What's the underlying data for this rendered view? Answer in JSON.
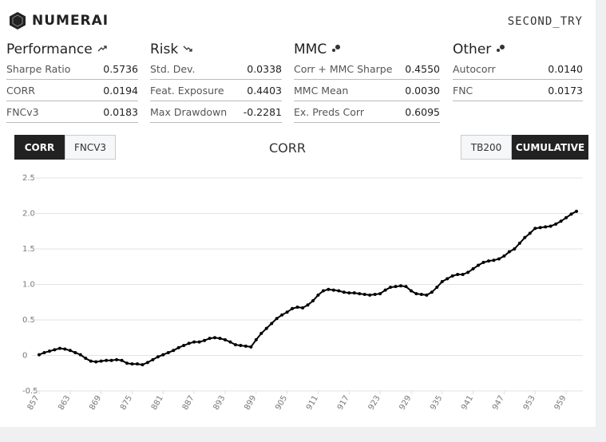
{
  "header": {
    "brand": "NUMERAI",
    "model": "SECOND_TRY"
  },
  "metrics": [
    {
      "title": "Performance",
      "rows": [
        {
          "label": "Sharpe Ratio",
          "value": "0.5736"
        },
        {
          "label": "CORR",
          "value": "0.0194"
        },
        {
          "label": "FNCv3",
          "value": "0.0183"
        }
      ]
    },
    {
      "title": "Risk",
      "rows": [
        {
          "label": "Std. Dev.",
          "value": "0.0338"
        },
        {
          "label": "Feat. Exposure",
          "value": "0.4403"
        },
        {
          "label": "Max Drawdown",
          "value": "-0.2281"
        }
      ]
    },
    {
      "title": "MMC",
      "rows": [
        {
          "label": "Corr + MMC Sharpe",
          "value": "0.4550"
        },
        {
          "label": "MMC Mean",
          "value": "0.0030"
        },
        {
          "label": "Ex. Preds Corr",
          "value": "0.6095"
        }
      ]
    },
    {
      "title": "Other",
      "rows": [
        {
          "label": "Autocorr",
          "value": "0.0140"
        },
        {
          "label": "FNC",
          "value": "0.0173"
        }
      ]
    }
  ],
  "tabs": {
    "left": [
      "CORR",
      "FNCV3"
    ],
    "right": [
      "TB200",
      "CUMULATIVE"
    ]
  },
  "chart_data": {
    "type": "line",
    "title": "CORR",
    "color": "#000000",
    "grid": true,
    "x": [
      857,
      858,
      859,
      860,
      861,
      862,
      863,
      864,
      865,
      866,
      867,
      868,
      869,
      870,
      871,
      872,
      873,
      874,
      875,
      876,
      877,
      878,
      879,
      880,
      881,
      882,
      883,
      884,
      885,
      886,
      887,
      888,
      889,
      890,
      891,
      892,
      893,
      894,
      895,
      896,
      897,
      898,
      899,
      900,
      901,
      902,
      903,
      904,
      905,
      906,
      907,
      908,
      909,
      910,
      911,
      912,
      913,
      914,
      915,
      916,
      917,
      918,
      919,
      920,
      921,
      922,
      923,
      924,
      925,
      926,
      927,
      928,
      929,
      930,
      931,
      932,
      933,
      934,
      935,
      936,
      937,
      938,
      939,
      940,
      941,
      942,
      943,
      944,
      945,
      946,
      947,
      948,
      949,
      950,
      951,
      952,
      953,
      954,
      955,
      956,
      957,
      958,
      959,
      960,
      961
    ],
    "values": [
      0.01,
      0.04,
      0.06,
      0.08,
      0.1,
      0.09,
      0.07,
      0.04,
      0.01,
      -0.04,
      -0.08,
      -0.09,
      -0.08,
      -0.07,
      -0.07,
      -0.06,
      -0.07,
      -0.11,
      -0.12,
      -0.12,
      -0.13,
      -0.1,
      -0.06,
      -0.02,
      0.01,
      0.04,
      0.07,
      0.11,
      0.14,
      0.17,
      0.19,
      0.19,
      0.21,
      0.24,
      0.25,
      0.24,
      0.22,
      0.19,
      0.15,
      0.14,
      0.13,
      0.12,
      0.22,
      0.31,
      0.38,
      0.45,
      0.52,
      0.57,
      0.61,
      0.66,
      0.68,
      0.67,
      0.71,
      0.77,
      0.85,
      0.91,
      0.93,
      0.92,
      0.91,
      0.89,
      0.88,
      0.88,
      0.87,
      0.86,
      0.85,
      0.86,
      0.87,
      0.92,
      0.96,
      0.97,
      0.98,
      0.97,
      0.91,
      0.87,
      0.86,
      0.85,
      0.89,
      0.96,
      1.04,
      1.08,
      1.12,
      1.14,
      1.14,
      1.17,
      1.22,
      1.27,
      1.31,
      1.33,
      1.34,
      1.36,
      1.4,
      1.46,
      1.5,
      1.58,
      1.66,
      1.72,
      1.79,
      1.8,
      1.81,
      1.82,
      1.85,
      1.89,
      1.94,
      1.99,
      2.03
    ],
    "xlim": [
      857,
      961
    ],
    "xticks": [
      857,
      863,
      869,
      875,
      881,
      887,
      893,
      899,
      905,
      911,
      917,
      923,
      929,
      935,
      941,
      947,
      953,
      959
    ],
    "ylim": [
      -0.5,
      2.5
    ],
    "yticks": [
      2.5,
      {
        "value": 2,
        "label": "2.0"
      },
      1.5,
      {
        "value": 1,
        "label": "1.0"
      },
      0.5,
      0,
      -0.5
    ]
  }
}
